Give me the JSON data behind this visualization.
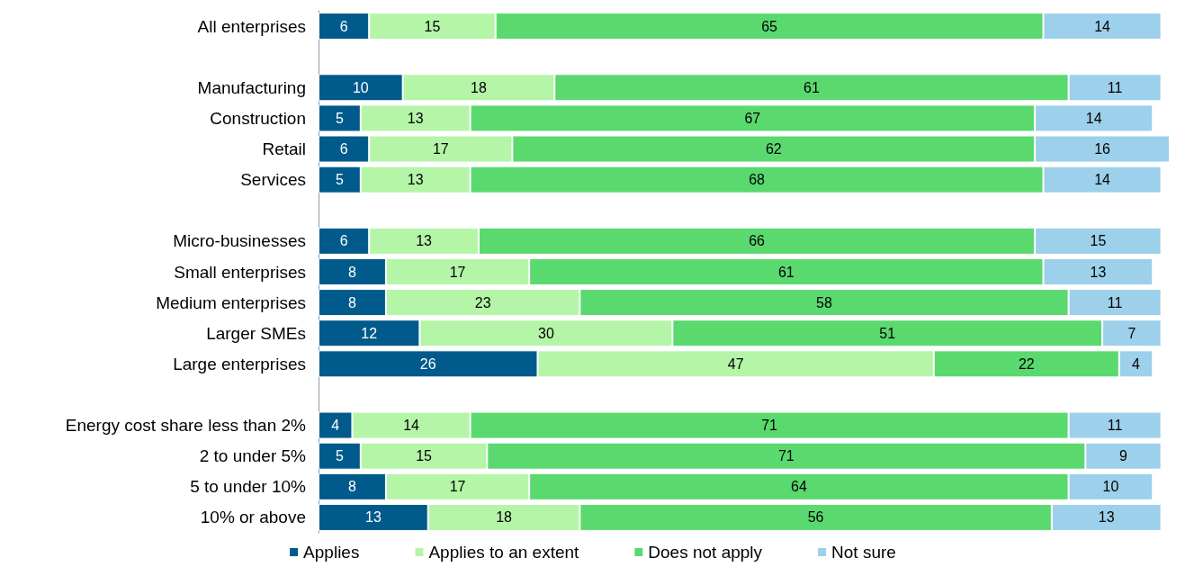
{
  "chart_data": {
    "type": "bar",
    "orientation": "horizontal",
    "stacked": true,
    "data_labels": true,
    "grid": false,
    "legend": "bottom",
    "xlim": [
      0,
      101
    ],
    "tick_labels": "y",
    "categories": [
      "All enterprises",
      null,
      "Manufacturing",
      "Construction",
      "Retail",
      "Services",
      null,
      "Micro-businesses",
      "Small enterprises",
      "Medium enterprises",
      "Larger SMEs",
      "Large enterprises",
      null,
      "Energy cost share less than 2%",
      "2 to under 5%",
      "5 to under 10%",
      "10% or above"
    ],
    "series": [
      {
        "name": "Applies",
        "color": "#005a8c",
        "values": [
          6,
          null,
          10,
          5,
          6,
          5,
          null,
          6,
          8,
          8,
          12,
          26,
          null,
          4,
          5,
          8,
          13
        ]
      },
      {
        "name": "Applies to an extent",
        "color": "#b5f5a8",
        "values": [
          15,
          null,
          18,
          13,
          17,
          13,
          null,
          13,
          17,
          23,
          30,
          47,
          null,
          14,
          15,
          17,
          18
        ]
      },
      {
        "name": "Does not apply",
        "color": "#5ad96e",
        "values": [
          65,
          null,
          61,
          67,
          62,
          68,
          null,
          66,
          61,
          58,
          51,
          22,
          null,
          71,
          71,
          64,
          56
        ]
      },
      {
        "name": "Not sure",
        "color": "#9dd0ea",
        "values": [
          14,
          null,
          11,
          14,
          16,
          14,
          null,
          15,
          13,
          11,
          7,
          4,
          null,
          11,
          9,
          10,
          13
        ]
      }
    ]
  }
}
